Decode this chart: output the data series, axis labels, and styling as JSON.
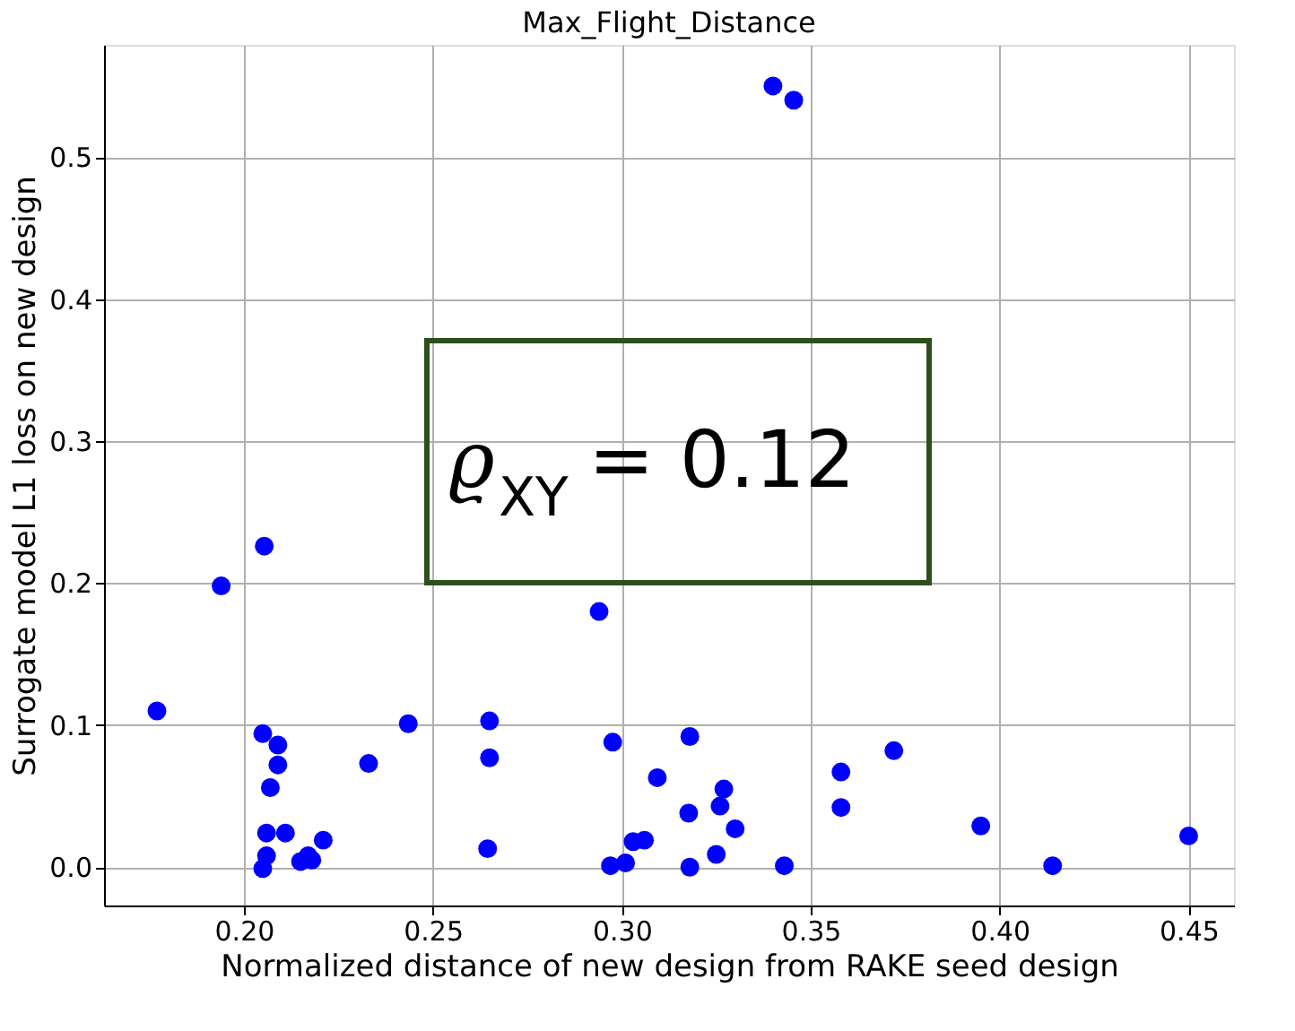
{
  "chart_data": {
    "type": "scatter",
    "title": "Max_Flight_Distance",
    "xlabel": "Normalized distance of new design from RAKE seed design",
    "ylabel": "Surrogate model L1 loss on new design",
    "x": [
      0.177,
      0.205,
      0.209,
      0.209,
      0.207,
      0.206,
      0.211,
      0.206,
      0.205,
      0.221,
      0.215,
      0.218,
      0.217,
      0.233,
      0.2435,
      0.265,
      0.265,
      0.2645,
      0.2976,
      0.318,
      0.3094,
      0.327,
      0.326,
      0.3177,
      0.33,
      0.303,
      0.306,
      0.297,
      0.301,
      0.318,
      0.325,
      0.343,
      0.358,
      0.358,
      0.372,
      0.395,
      0.414,
      0.45,
      0.34,
      0.3455,
      0.2054,
      0.194,
      0.294
    ],
    "values": [
      0.11,
      0.094,
      0.086,
      0.072,
      0.056,
      0.024,
      0.024,
      0.008,
      -0.001,
      0.019,
      0.004,
      0.005,
      0.008,
      0.073,
      0.101,
      0.103,
      0.077,
      0.013,
      0.088,
      0.092,
      0.063,
      0.055,
      0.043,
      0.038,
      0.027,
      0.018,
      0.019,
      0.001,
      0.003,
      0.0,
      0.009,
      0.001,
      0.067,
      0.042,
      0.082,
      0.029,
      0.001,
      0.022,
      0.55,
      0.54,
      0.226,
      0.198,
      0.18
    ],
    "color": "#0000ff",
    "marker": "circle",
    "grid": true,
    "xlim": [
      0.163,
      0.462
    ],
    "ylim": [
      -0.027,
      0.579
    ],
    "xticks": [
      {
        "value": 0.2,
        "label": "0.20"
      },
      {
        "value": 0.25,
        "label": "0.25"
      },
      {
        "value": 0.3,
        "label": "0.30"
      },
      {
        "value": 0.35,
        "label": "0.35"
      },
      {
        "value": 0.4,
        "label": "0.40"
      },
      {
        "value": 0.45,
        "label": "0.45"
      }
    ],
    "yticks": [
      {
        "value": 0,
        "label": "0.0"
      },
      {
        "value": 0.1,
        "label": "0.1"
      },
      {
        "value": 0.2,
        "label": "0.2"
      },
      {
        "value": 0.3,
        "label": "0.3"
      },
      {
        "value": 0.4,
        "label": "0.4"
      },
      {
        "value": 0.5,
        "label": "0.5"
      }
    ],
    "annotations": [
      "ϱ$_{XY}$ = 0.12"
    ]
  }
}
